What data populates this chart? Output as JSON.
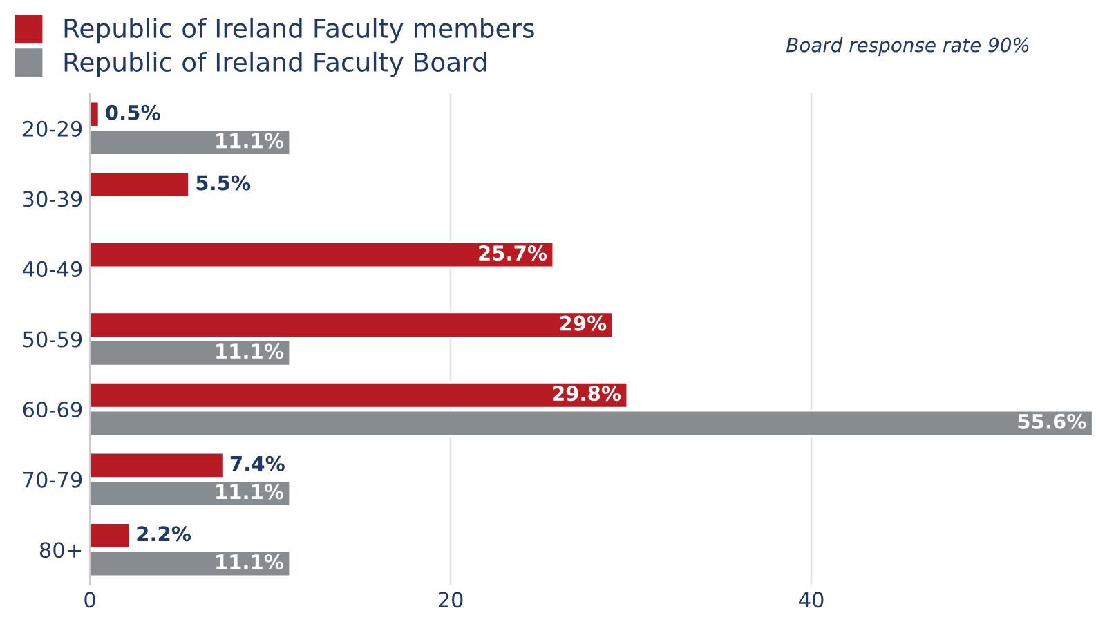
{
  "chart_data": {
    "type": "bar",
    "orientation": "horizontal",
    "categories": [
      "20-29",
      "30-39",
      "40-49",
      "50-59",
      "60-69",
      "70-79",
      "80+"
    ],
    "series": [
      {
        "name": "Republic of Ireland Faculty members",
        "color": "#b71c24",
        "values": [
          0.5,
          5.5,
          25.7,
          29,
          29.8,
          7.4,
          2.2
        ],
        "value_labels": [
          "0.5%",
          "5.5%",
          "25.7%",
          "29%",
          "29.8%",
          "7.4%",
          "2.2%"
        ]
      },
      {
        "name": "Republic of Ireland Faculty Board",
        "color": "#878c91",
        "values": [
          11.1,
          null,
          null,
          11.1,
          55.6,
          11.1,
          11.1
        ],
        "value_labels": [
          "11.1%",
          null,
          null,
          "11.1%",
          "55.6%",
          "11.1%",
          "11.1%"
        ]
      }
    ],
    "xlim": [
      0,
      55.6
    ],
    "xticks": [
      0,
      20,
      40
    ],
    "grid": "x",
    "legend": "top left",
    "annotations": [
      "Board response rate 90%"
    ]
  }
}
